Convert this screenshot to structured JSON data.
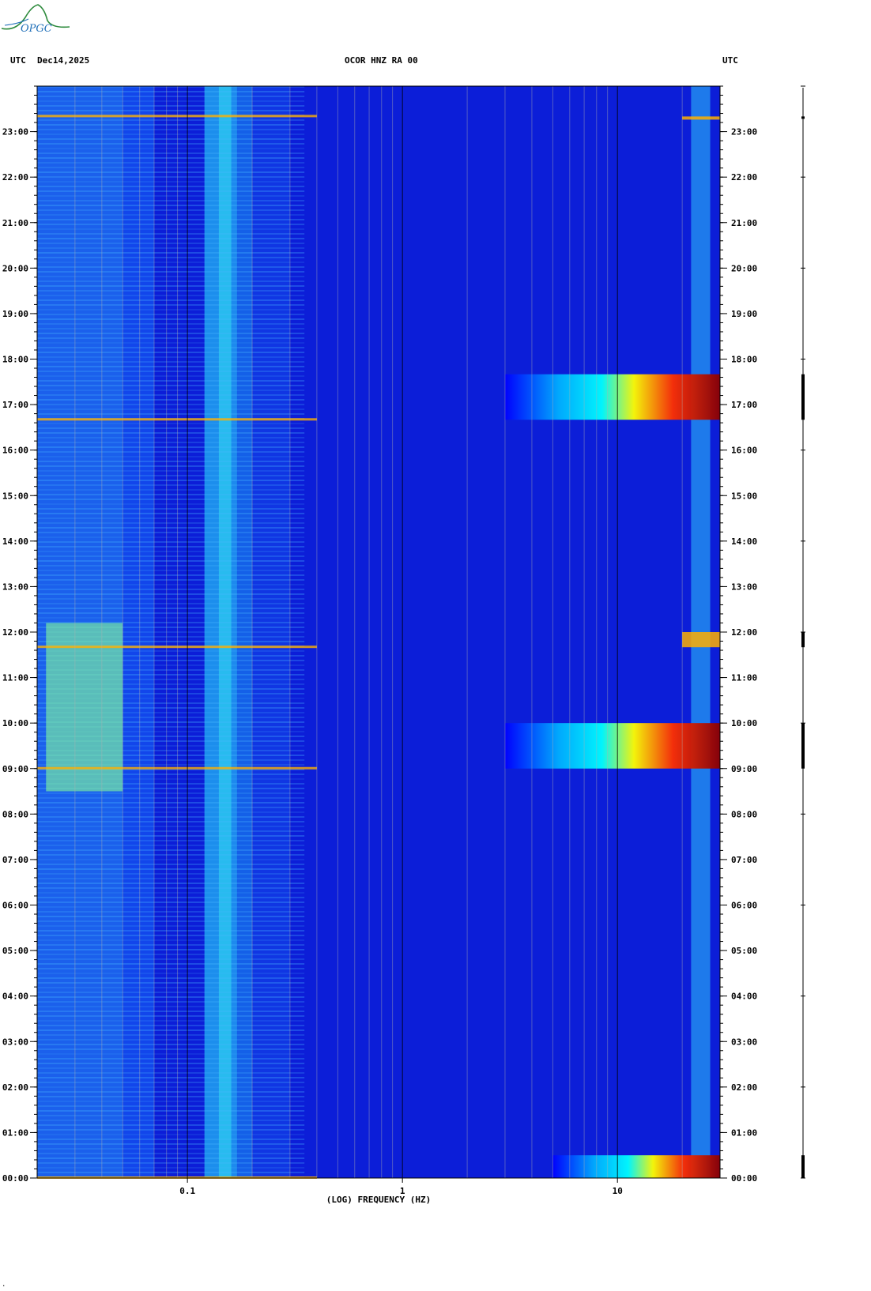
{
  "header": {
    "left_utc": "UTC",
    "date": "Dec14,2025",
    "station": "OCOR HNZ RA 00",
    "right_utc": "UTC"
  },
  "logo": {
    "text": "OPGC",
    "color": "#1f6fb8",
    "accent": "#2e8b3d"
  },
  "footer_mark": ".",
  "chart_data": {
    "type": "heatmap",
    "title": "OCOR HNZ RA 00",
    "xlabel": "(LOG) FREQUENCY (HZ)",
    "ylabel": "UTC",
    "x_scale": "log",
    "xlim": [
      0.02,
      30
    ],
    "x_ticks": [
      {
        "value": 0.1,
        "label": "0.1"
      },
      {
        "value": 1,
        "label": "1"
      },
      {
        "value": 10,
        "label": "10"
      }
    ],
    "ylim": [
      "00:00",
      "24:00"
    ],
    "y_ticks": [
      "00:00",
      "01:00",
      "02:00",
      "03:00",
      "04:00",
      "05:00",
      "06:00",
      "07:00",
      "08:00",
      "09:00",
      "10:00",
      "11:00",
      "12:00",
      "13:00",
      "14:00",
      "15:00",
      "16:00",
      "17:00",
      "18:00",
      "19:00",
      "20:00",
      "21:00",
      "22:00",
      "23:00"
    ],
    "colormap": [
      "#00008b",
      "#0000ff",
      "#0080ff",
      "#00ffff",
      "#ffff00",
      "#ff0000",
      "#8b0000"
    ],
    "background_level": "blue",
    "events": [
      {
        "start": "00:00",
        "end": "00:30",
        "fmin": 5,
        "fmax": 30,
        "intensity": "high"
      },
      {
        "start": "09:00",
        "end": "10:00",
        "fmin": 3,
        "fmax": 30,
        "intensity": "high"
      },
      {
        "start": "16:40",
        "end": "17:40",
        "fmin": 3,
        "fmax": 30,
        "intensity": "high"
      },
      {
        "start": "11:40",
        "end": "12:00",
        "fmin": 20,
        "fmax": 30,
        "intensity": "medium"
      },
      {
        "start": "23:20",
        "end": "23:20",
        "fmin": 20,
        "fmax": 30,
        "intensity": "medium"
      }
    ]
  }
}
